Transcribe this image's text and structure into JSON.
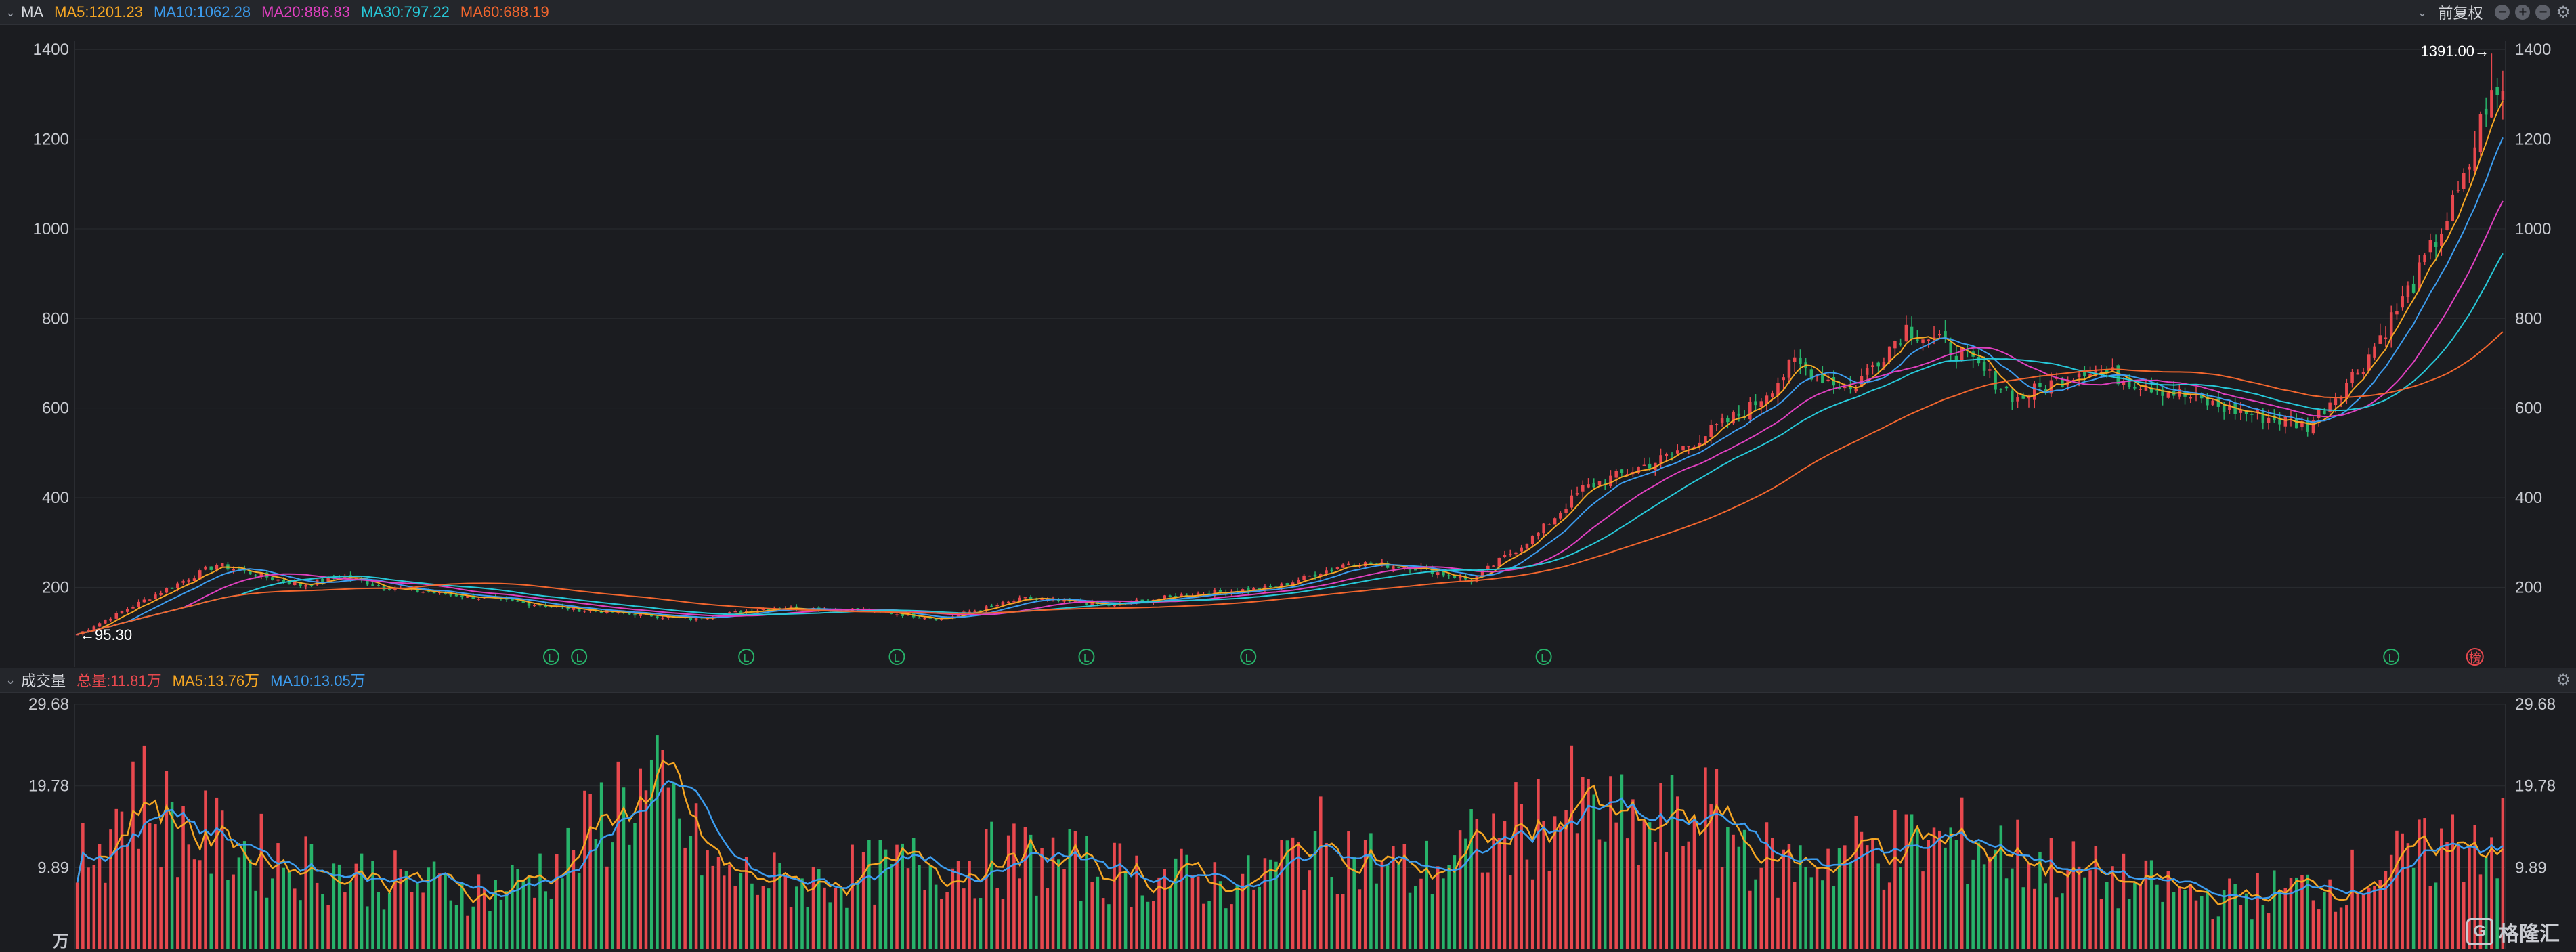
{
  "price_header": {
    "indicator": "MA",
    "ma_items": [
      {
        "label": "MA5:1201.23",
        "color": "#f5a623"
      },
      {
        "label": "MA10:1062.28",
        "color": "#3c9df0"
      },
      {
        "label": "MA20:886.83",
        "color": "#e040c0"
      },
      {
        "label": "MA30:797.22",
        "color": "#27c8d8"
      },
      {
        "label": "MA60:688.19",
        "color": "#f2662e"
      }
    ],
    "adjust_label": "前复权"
  },
  "volume_header": {
    "indicator": "成交量",
    "items": [
      {
        "label": "总量:11.81万",
        "color": "#e8484e"
      },
      {
        "label": "MA5:13.76万",
        "color": "#f5a623"
      },
      {
        "label": "MA10:13.05万",
        "color": "#3c9df0"
      }
    ]
  },
  "price_axis": {
    "ticks": [
      "200",
      "400",
      "600",
      "800",
      "1000",
      "1200",
      "1400"
    ]
  },
  "volume_axis": {
    "ticks": [
      "9.89",
      "19.78",
      "29.68"
    ],
    "unit": "万"
  },
  "annotations": {
    "high_label": "1391.00→",
    "low_label": "←95.30",
    "marker_letter": "L",
    "last_marker": "榜"
  },
  "watermark": {
    "text": "格隆汇"
  },
  "colors": {
    "up": "#e8484e",
    "down": "#27b36a",
    "grid": "#2a2c31"
  },
  "chart_data": [
    {
      "type": "candlestick",
      "title": "",
      "ylim": [
        60,
        1420
      ],
      "price_keyframes": [
        [
          0,
          95
        ],
        [
          15,
          190
        ],
        [
          25,
          250
        ],
        [
          40,
          205
        ],
        [
          48,
          225
        ],
        [
          55,
          200
        ],
        [
          70,
          180
        ],
        [
          90,
          150
        ],
        [
          110,
          130
        ],
        [
          125,
          155
        ],
        [
          140,
          150
        ],
        [
          155,
          130
        ],
        [
          170,
          175
        ],
        [
          185,
          160
        ],
        [
          200,
          185
        ],
        [
          215,
          200
        ],
        [
          228,
          255
        ],
        [
          240,
          245
        ],
        [
          250,
          215
        ],
        [
          262,
          320
        ],
        [
          270,
          420
        ],
        [
          285,
          490
        ],
        [
          300,
          600
        ],
        [
          308,
          700
        ],
        [
          318,
          640
        ],
        [
          328,
          780
        ],
        [
          338,
          720
        ],
        [
          348,
          620
        ],
        [
          360,
          690
        ],
        [
          372,
          650
        ],
        [
          385,
          600
        ],
        [
          400,
          560
        ],
        [
          410,
          700
        ],
        [
          420,
          900
        ],
        [
          428,
          1100
        ],
        [
          432,
          1280
        ],
        [
          435,
          1300
        ]
      ],
      "high_value": 1391.0,
      "low_value": 95.3,
      "moving_averages": [
        {
          "name": "MA5",
          "period": 5,
          "last": 1201.23
        },
        {
          "name": "MA10",
          "period": 10,
          "last": 1062.28
        },
        {
          "name": "MA20",
          "period": 20,
          "last": 886.83
        },
        {
          "name": "MA30",
          "period": 30,
          "last": 797.22
        },
        {
          "name": "MA60",
          "period": 60,
          "last": 688.19
        }
      ]
    },
    {
      "type": "bar",
      "title": "",
      "ylim": [
        0,
        29.68
      ],
      "unit": "万",
      "volume_keyframes": [
        [
          0,
          10
        ],
        [
          10,
          19
        ],
        [
          20,
          14
        ],
        [
          35,
          11
        ],
        [
          50,
          9
        ],
        [
          60,
          8
        ],
        [
          75,
          7
        ],
        [
          88,
          11
        ],
        [
          98,
          19
        ],
        [
          105,
          18
        ],
        [
          115,
          9
        ],
        [
          130,
          8
        ],
        [
          150,
          10
        ],
        [
          170,
          11
        ],
        [
          190,
          9
        ],
        [
          210,
          8
        ],
        [
          222,
          13
        ],
        [
          240,
          9
        ],
        [
          250,
          12
        ],
        [
          268,
          17
        ],
        [
          280,
          14
        ],
        [
          292,
          16
        ],
        [
          305,
          10
        ],
        [
          320,
          12
        ],
        [
          340,
          13
        ],
        [
          360,
          9
        ],
        [
          385,
          6
        ],
        [
          405,
          8
        ],
        [
          420,
          11
        ],
        [
          430,
          14
        ],
        [
          435,
          13
        ]
      ],
      "moving_averages": [
        {
          "name": "MA5",
          "last": 13.76
        },
        {
          "name": "MA10",
          "last": 13.05
        }
      ]
    }
  ]
}
